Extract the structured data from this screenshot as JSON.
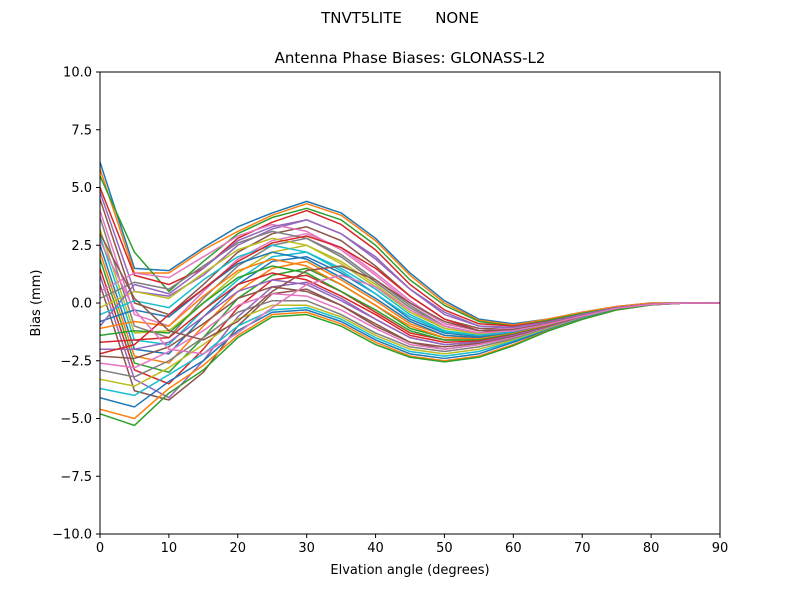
{
  "figure": {
    "suptitle": "TNVT5LITE       NONE"
  },
  "chart_data": {
    "type": "line",
    "title": "Antenna Phase Biases: GLONASS-L2",
    "xlabel": "Elvation angle (degrees)",
    "ylabel": "Bias (mm)",
    "xlim": [
      0,
      90
    ],
    "ylim": [
      -10,
      10
    ],
    "xticks": [
      "0",
      "10",
      "20",
      "30",
      "40",
      "50",
      "60",
      "70",
      "80",
      "90"
    ],
    "yticks": [
      "−10.0",
      "−7.5",
      "−5.0",
      "−2.5",
      "0.0",
      "2.5",
      "5.0",
      "7.5",
      "10.0"
    ],
    "ytick_values": [
      -10,
      -7.5,
      -5,
      -2.5,
      0,
      2.5,
      5,
      7.5,
      10
    ],
    "grid": false,
    "legend": "none",
    "x": [
      0,
      5,
      10,
      15,
      20,
      25,
      30,
      35,
      40,
      45,
      50,
      55,
      60,
      65,
      70,
      75,
      80,
      85,
      90
    ],
    "colors": [
      "#1f77b4",
      "#ff7f0e",
      "#2ca02c",
      "#d62728",
      "#9467bd",
      "#8c564b",
      "#e377c2",
      "#7f7f7f",
      "#bcbd22",
      "#17becf"
    ],
    "series": [
      {
        "values": [
          6.1,
          1.5,
          1.4,
          2.4,
          3.3,
          3.9,
          4.4,
          3.9,
          2.8,
          1.3,
          0.1,
          -0.7,
          -0.9,
          -0.7,
          -0.4,
          -0.15,
          0.0,
          0.0,
          0.0
        ]
      },
      {
        "values": [
          5.8,
          1.3,
          1.3,
          2.3,
          3.1,
          3.8,
          4.3,
          3.8,
          2.7,
          1.2,
          0.0,
          -0.75,
          -0.95,
          -0.7,
          -0.4,
          -0.15,
          0.0,
          0.0,
          0.0
        ]
      },
      {
        "values": [
          5.5,
          2.2,
          0.5,
          1.8,
          3.0,
          3.7,
          4.1,
          3.6,
          2.5,
          1.0,
          -0.1,
          -0.8,
          -1.0,
          -0.75,
          -0.45,
          -0.2,
          -0.05,
          0.0,
          0.0
        ]
      },
      {
        "values": [
          5.0,
          1.2,
          0.8,
          1.5,
          2.8,
          3.5,
          4.0,
          3.4,
          2.3,
          0.8,
          -0.3,
          -0.9,
          -1.0,
          -0.8,
          -0.5,
          -0.2,
          -0.05,
          0.0,
          0.0
        ]
      },
      {
        "values": [
          4.8,
          0.5,
          0.3,
          1.2,
          2.5,
          3.2,
          3.6,
          3.0,
          2.0,
          0.6,
          -0.5,
          -1.0,
          -1.1,
          -0.85,
          -0.5,
          -0.2,
          -0.05,
          0.0,
          0.0
        ]
      },
      {
        "values": [
          4.5,
          0.0,
          -0.5,
          0.8,
          2.2,
          3.0,
          3.3,
          2.7,
          1.6,
          0.3,
          -0.7,
          -1.1,
          -1.15,
          -0.9,
          -0.55,
          -0.22,
          -0.06,
          0.0,
          0.0
        ]
      },
      {
        "values": [
          4.0,
          -0.5,
          -1.0,
          0.5,
          1.9,
          2.7,
          3.0,
          2.4,
          1.3,
          0.1,
          -0.9,
          -1.2,
          -1.2,
          -0.9,
          -0.55,
          -0.22,
          -0.06,
          0.0,
          0.0
        ]
      },
      {
        "values": [
          3.7,
          -1.0,
          -1.5,
          0.2,
          1.6,
          2.5,
          2.8,
          2.1,
          1.0,
          -0.1,
          -1.0,
          -1.3,
          -1.2,
          -0.92,
          -0.56,
          -0.23,
          -0.06,
          0.0,
          0.0
        ]
      },
      {
        "values": [
          3.2,
          -1.3,
          -1.2,
          0.0,
          1.3,
          2.2,
          2.5,
          1.8,
          0.8,
          -0.3,
          -1.1,
          -1.35,
          -1.25,
          -0.95,
          -0.57,
          -0.23,
          -0.06,
          0.0,
          0.0
        ]
      },
      {
        "values": [
          2.9,
          -1.6,
          -1.8,
          -0.3,
          1.0,
          2.0,
          2.2,
          1.5,
          0.6,
          -0.5,
          -1.2,
          -1.4,
          -1.25,
          -0.95,
          -0.58,
          -0.24,
          -0.06,
          0.0,
          0.0
        ]
      },
      {
        "values": [
          2.5,
          -2.0,
          -2.2,
          -0.6,
          0.8,
          1.8,
          2.0,
          1.3,
          0.4,
          -0.7,
          -1.3,
          -1.45,
          -1.3,
          -1.0,
          -0.6,
          -0.25,
          -0.07,
          0.0,
          0.0
        ]
      },
      {
        "values": [
          2.2,
          -2.3,
          -2.6,
          -1.0,
          0.5,
          1.5,
          1.8,
          1.0,
          0.1,
          -0.9,
          -1.4,
          -1.5,
          -1.3,
          -1.0,
          -0.6,
          -0.25,
          -0.07,
          0.0,
          0.0
        ]
      },
      {
        "values": [
          1.9,
          -2.6,
          -3.0,
          -1.5,
          0.2,
          1.2,
          1.5,
          0.8,
          -0.1,
          -1.1,
          -1.5,
          -1.55,
          -1.35,
          -1.0,
          -0.6,
          -0.25,
          -0.07,
          0.0,
          0.0
        ]
      },
      {
        "values": [
          1.5,
          -2.9,
          -3.5,
          -2.0,
          -0.2,
          1.0,
          1.2,
          0.5,
          -0.4,
          -1.3,
          -1.6,
          -1.6,
          -1.4,
          -1.05,
          -0.62,
          -0.26,
          -0.07,
          0.0,
          0.0
        ]
      },
      {
        "values": [
          1.2,
          -3.3,
          -4.1,
          -2.5,
          -0.6,
          0.7,
          0.9,
          0.2,
          -0.7,
          -1.5,
          -1.8,
          -1.7,
          -1.45,
          -1.1,
          -0.65,
          -0.27,
          -0.07,
          0.0,
          0.0
        ]
      },
      {
        "values": [
          0.8,
          -3.8,
          -4.2,
          -3.0,
          -1.0,
          0.4,
          0.6,
          -0.1,
          -1.0,
          -1.7,
          -2.0,
          -1.8,
          -1.5,
          -1.1,
          -0.65,
          -0.27,
          -0.07,
          0.0,
          0.0
        ]
      },
      {
        "values": [
          0.5,
          1.3,
          1.1,
          2.0,
          2.9,
          3.4,
          3.1,
          2.3,
          1.2,
          0.0,
          -0.9,
          -1.2,
          -1.1,
          -0.85,
          -0.5,
          -0.2,
          -0.05,
          0.0,
          0.0
        ]
      },
      {
        "values": [
          0.2,
          0.9,
          0.6,
          1.6,
          2.6,
          3.1,
          2.8,
          2.0,
          0.9,
          -0.2,
          -1.0,
          -1.3,
          -1.15,
          -0.88,
          -0.52,
          -0.21,
          -0.05,
          0.0,
          0.0
        ]
      },
      {
        "values": [
          -0.2,
          0.5,
          0.2,
          1.3,
          2.3,
          2.8,
          2.5,
          1.7,
          0.7,
          -0.4,
          -1.1,
          -1.35,
          -1.2,
          -0.9,
          -0.54,
          -0.22,
          -0.06,
          0.0,
          0.0
        ]
      },
      {
        "values": [
          -0.5,
          0.1,
          -0.2,
          1.0,
          2.0,
          2.5,
          2.2,
          1.4,
          0.4,
          -0.6,
          -1.25,
          -1.4,
          -1.25,
          -0.92,
          -0.55,
          -0.22,
          -0.06,
          0.0,
          0.0
        ]
      },
      {
        "values": [
          -0.8,
          -0.3,
          -0.6,
          0.6,
          1.7,
          2.2,
          1.9,
          1.1,
          0.2,
          -0.8,
          -1.4,
          -1.5,
          -1.3,
          -0.95,
          -0.57,
          -0.23,
          -0.06,
          0.0,
          0.0
        ]
      },
      {
        "values": [
          -1.1,
          -0.8,
          -1.0,
          0.3,
          1.4,
          1.9,
          1.6,
          0.8,
          -0.1,
          -1.0,
          -1.5,
          -1.55,
          -1.32,
          -0.97,
          -0.58,
          -0.24,
          -0.06,
          0.0,
          0.0
        ]
      },
      {
        "values": [
          -1.4,
          -1.2,
          -1.3,
          0.0,
          1.1,
          1.6,
          1.3,
          0.5,
          -0.3,
          -1.2,
          -1.6,
          -1.6,
          -1.35,
          -1.0,
          -0.6,
          -0.25,
          -0.07,
          0.0,
          0.0
        ]
      },
      {
        "values": [
          -1.7,
          -1.6,
          -1.5,
          -0.3,
          0.8,
          1.3,
          1.0,
          0.3,
          -0.5,
          -1.4,
          -1.7,
          -1.65,
          -1.38,
          -1.02,
          -0.61,
          -0.25,
          -0.07,
          0.0,
          0.0
        ]
      },
      {
        "values": [
          -2.0,
          -2.0,
          -1.7,
          -0.6,
          0.5,
          1.0,
          0.8,
          0.1,
          -0.7,
          -1.5,
          -1.8,
          -1.7,
          -1.4,
          -1.04,
          -0.62,
          -0.26,
          -0.07,
          0.0,
          0.0
        ]
      },
      {
        "values": [
          -2.3,
          -2.4,
          -1.9,
          -0.9,
          0.2,
          0.7,
          0.5,
          -0.1,
          -0.9,
          -1.7,
          -1.9,
          -1.75,
          -1.45,
          -1.06,
          -0.63,
          -0.26,
          -0.07,
          0.0,
          0.0
        ]
      },
      {
        "values": [
          -2.6,
          -2.8,
          -2.1,
          -1.2,
          -0.1,
          0.4,
          0.3,
          -0.3,
          -1.1,
          -1.8,
          -2.0,
          -1.8,
          -1.5,
          -1.08,
          -0.64,
          -0.27,
          -0.07,
          0.0,
          0.0
        ]
      },
      {
        "values": [
          -2.9,
          -3.2,
          -2.5,
          -1.5,
          -0.4,
          0.1,
          0.1,
          -0.5,
          -1.3,
          -1.9,
          -2.1,
          -1.9,
          -1.55,
          -1.1,
          -0.65,
          -0.27,
          -0.07,
          0.0,
          0.0
        ]
      },
      {
        "values": [
          -3.3,
          -3.6,
          -2.8,
          -1.8,
          -0.7,
          -0.1,
          -0.1,
          -0.6,
          -1.4,
          -2.0,
          -2.2,
          -2.0,
          -1.6,
          -1.12,
          -0.66,
          -0.28,
          -0.07,
          0.0,
          0.0
        ]
      },
      {
        "values": [
          -3.7,
          -4.0,
          -3.1,
          -2.2,
          -1.0,
          -0.3,
          -0.2,
          -0.7,
          -1.5,
          -2.1,
          -2.3,
          -2.1,
          -1.65,
          -1.15,
          -0.67,
          -0.28,
          -0.08,
          0.0,
          0.0
        ]
      },
      {
        "values": [
          -4.1,
          -4.5,
          -3.4,
          -2.5,
          -1.2,
          -0.4,
          -0.3,
          -0.8,
          -1.6,
          -2.2,
          -2.4,
          -2.2,
          -1.7,
          -1.17,
          -0.68,
          -0.29,
          -0.08,
          0.0,
          0.0
        ]
      },
      {
        "values": [
          -4.6,
          -5.0,
          -3.7,
          -2.7,
          -1.4,
          -0.5,
          -0.4,
          -0.9,
          -1.7,
          -2.3,
          -2.5,
          -2.3,
          -1.8,
          -1.2,
          -0.7,
          -0.3,
          -0.08,
          0.0,
          0.0
        ]
      },
      {
        "values": [
          -4.8,
          -5.3,
          -3.9,
          -2.9,
          -1.5,
          -0.6,
          -0.5,
          -1.0,
          -1.8,
          -2.35,
          -2.55,
          -2.35,
          -1.85,
          -1.22,
          -0.71,
          -0.3,
          -0.08,
          0.0,
          0.0
        ]
      },
      {
        "values": [
          -2.2,
          -1.8,
          -0.5,
          0.6,
          1.8,
          2.6,
          2.9,
          2.4,
          1.5,
          0.3,
          -0.7,
          -1.2,
          -1.2,
          -0.9,
          -0.55,
          -0.22,
          -0.06,
          0.0,
          0.0
        ]
      },
      {
        "values": [
          -1.0,
          0.8,
          0.4,
          1.5,
          2.7,
          3.3,
          3.6,
          3.0,
          1.9,
          0.6,
          -0.4,
          -1.0,
          -1.05,
          -0.82,
          -0.5,
          -0.2,
          -0.05,
          0.0,
          0.0
        ]
      },
      {
        "values": [
          3.0,
          0.2,
          -1.2,
          -1.6,
          -0.8,
          0.5,
          1.4,
          1.6,
          1.0,
          0.0,
          -0.8,
          -1.2,
          -1.15,
          -0.9,
          -0.55,
          -0.22,
          -0.06,
          0.0,
          0.0
        ]
      },
      {
        "values": [
          2.7,
          -0.3,
          -2.0,
          -2.2,
          -1.3,
          -0.2,
          0.8,
          1.2,
          0.7,
          -0.3,
          -1.0,
          -1.3,
          -1.2,
          -0.92,
          -0.56,
          -0.23,
          -0.06,
          0.0,
          0.0
        ]
      }
    ]
  }
}
